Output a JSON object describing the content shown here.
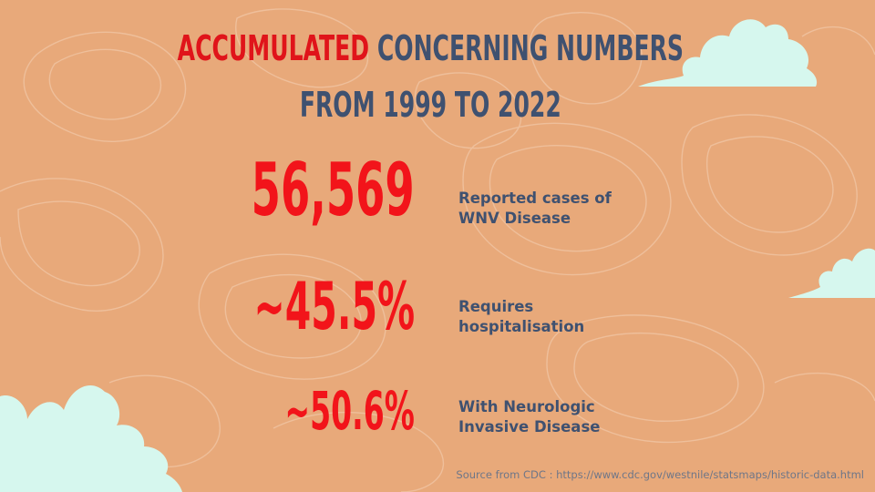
{
  "slide": {
    "title": {
      "line1_accent": "ACCUMULATED",
      "line1_rest": "CONCERNING NUMBERS",
      "line2": "FROM 1999 TO 2022"
    },
    "stats": [
      {
        "value": "56,569",
        "label_line1": "Reported cases of",
        "label_line2": "WNV Disease"
      },
      {
        "value": "~45.5%",
        "label_line1": "Requires",
        "label_line2": "hospitalisation"
      },
      {
        "value": "~50.6%",
        "label_line1": "With Neurologic",
        "label_line2": "Invasive Disease"
      }
    ],
    "source": "Source from CDC : https://www.cdc.gov/westnile/statsmaps/historic-data.html"
  },
  "colors": {
    "background": "#e8a97a",
    "title_navy": "#3f5170",
    "accent_red": "#e0141a",
    "stat_red": "#f2141a",
    "cloud": "#d6f7ee"
  }
}
